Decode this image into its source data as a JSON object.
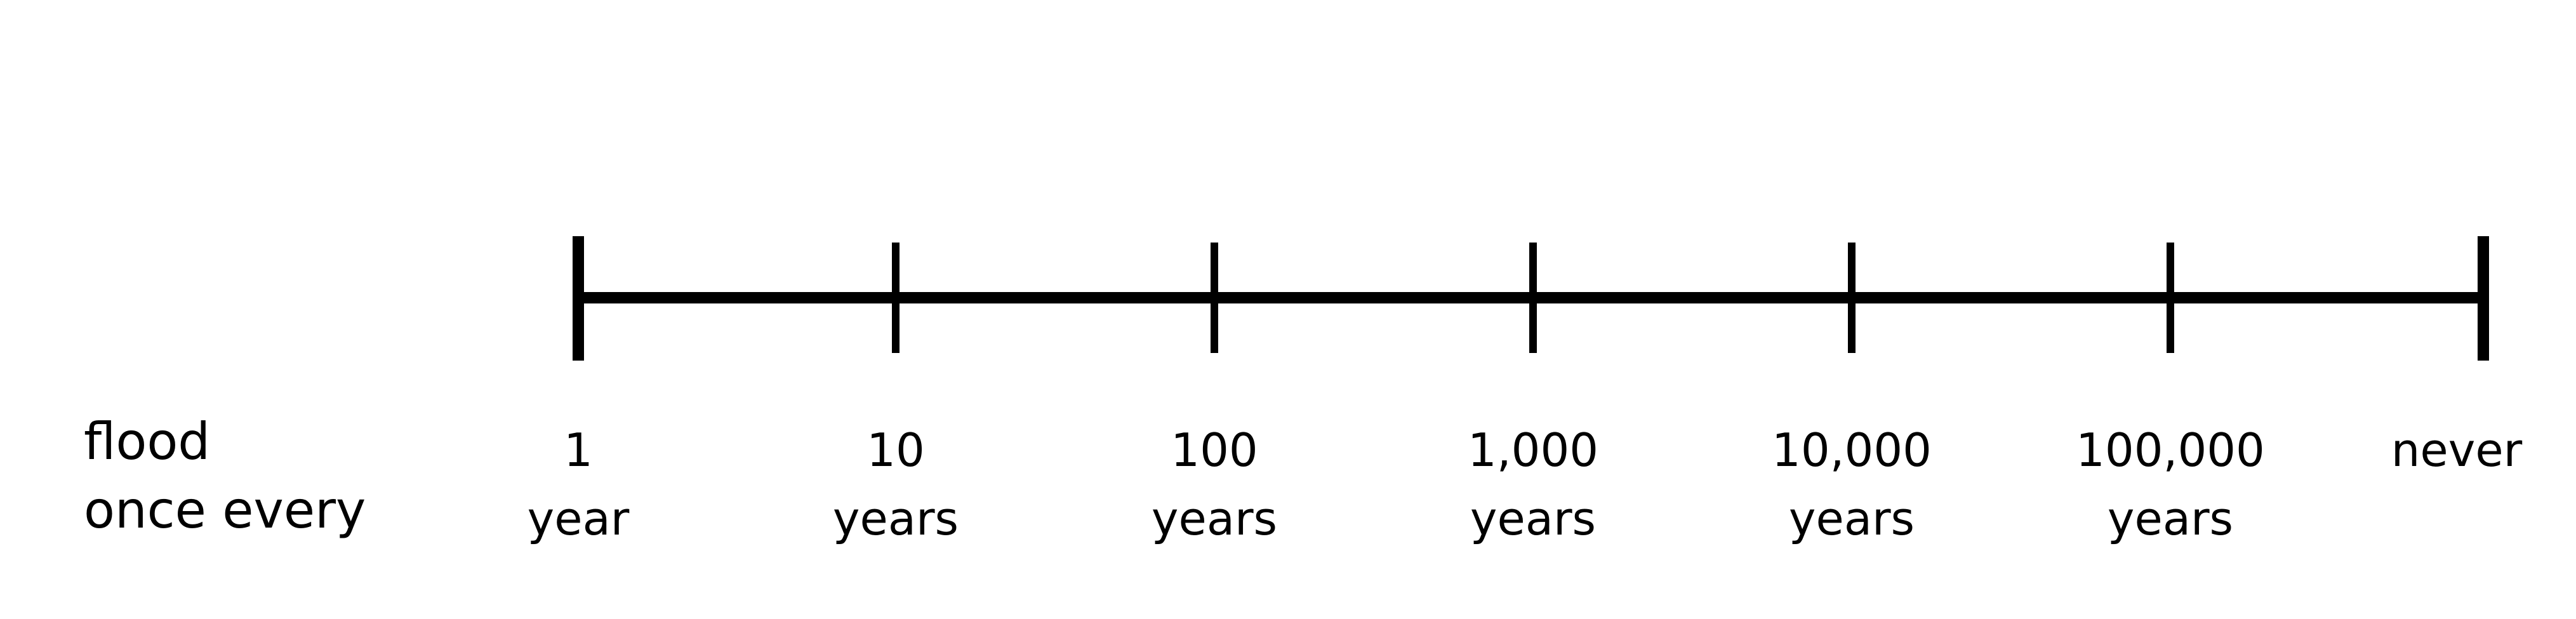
{
  "row_label": {
    "line1": "flood",
    "line2": "once every"
  },
  "axis": {
    "scale": "logarithmic",
    "ticks": [
      {
        "value": "1",
        "unit": "year"
      },
      {
        "value": "10",
        "unit": "years"
      },
      {
        "value": "100",
        "unit": "years"
      },
      {
        "value": "1,000",
        "unit": "years"
      },
      {
        "value": "10,000",
        "unit": "years"
      },
      {
        "value": "100,000",
        "unit": "years"
      },
      {
        "value": "never",
        "unit": ""
      }
    ]
  }
}
